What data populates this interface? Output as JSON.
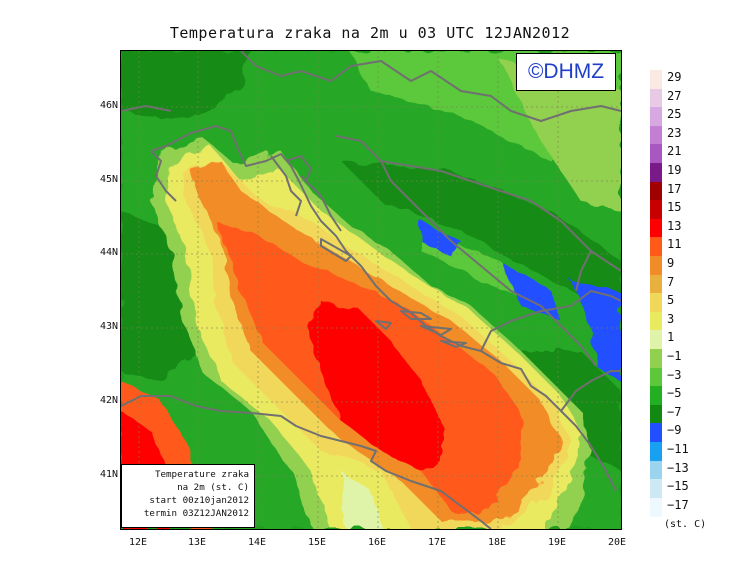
{
  "title": "Temperatura zraka na 2m u 03 UTC 12JAN2012",
  "logo": "©DHMZ",
  "info_box": {
    "line1": "Temperature zraka",
    "line2": "na 2m (st. C)",
    "line3": "start 00z10jan2012",
    "line4": "termin 03Z12JAN2012"
  },
  "lat_labels": [
    "46N",
    "45N",
    "44N",
    "43N",
    "42N",
    "41N"
  ],
  "lon_labels": [
    "12E",
    "13E",
    "14E",
    "15E",
    "16E",
    "17E",
    "18E",
    "19E",
    "20E"
  ],
  "colorbar": {
    "units": "(st. C)",
    "labels": [
      "29",
      "27",
      "25",
      "23",
      "21",
      "19",
      "17",
      "15",
      "13",
      "11",
      "9",
      "7",
      "5",
      "3",
      "1",
      "−1",
      "−3",
      "−5",
      "−7",
      "−9",
      "−11",
      "−13",
      "−15",
      "−17"
    ],
    "colors": [
      "#fbe9e4",
      "#e8c9e6",
      "#d8a8e0",
      "#c47fd4",
      "#a858c0",
      "#7a1a8a",
      "#a00000",
      "#c80000",
      "#ff0000",
      "#ff5a1a",
      "#f28c28",
      "#e9b040",
      "#f2d85a",
      "#eaea60",
      "#dff4a8",
      "#92d050",
      "#5cc83a",
      "#22b022",
      "#128a12",
      "#2050ff",
      "#1aa0f0",
      "#9ad4ee",
      "#cfe8f6",
      "#eef8ff"
    ]
  }
}
